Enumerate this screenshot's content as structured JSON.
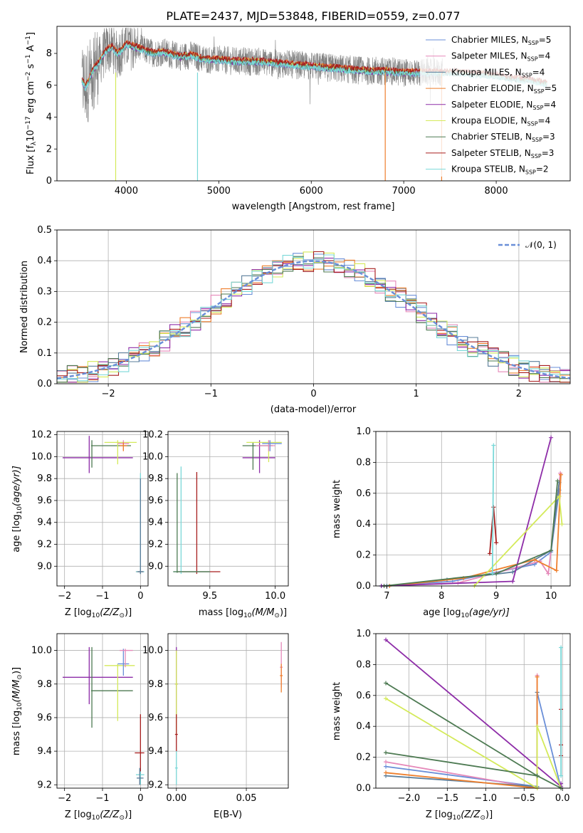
{
  "colors": {
    "Chabrier MILES": "#6a8fd8",
    "Salpeter MILES": "#e588b9",
    "Kroupa MILES": "#5a7d9a",
    "Chabrier ELODIE": "#ee7f2d",
    "Salpeter ELODIE": "#8e2da8",
    "Kroupa ELODIE": "#d4ea5a",
    "Chabrier STELIB": "#4d7a52",
    "Salpeter STELIB": "#a71e1e",
    "Kroupa STELIB": "#7ad8d8",
    "data": "#7f7f7f"
  },
  "chart_data": [
    {
      "id": "spectrum",
      "type": "line",
      "title": "PLATE=2437, MJD=53848, FIBERID=0559, z=0.077",
      "xlabel": "wavelength [Angstrom, rest frame]",
      "ylabel_main": "Flux [f",
      "ylabel_sub": "λ",
      "ylabel_rest": "10",
      "ylabel_exp1": "−17",
      "ylabel_mid": " erg cm",
      "ylabel_exp2": "−2",
      "ylabel_mid2": " s",
      "ylabel_exp3": "−1",
      "ylabel_end": " A",
      "ylabel_exp4": "−1",
      "ylabel_close": "]",
      "xlim": [
        3250,
        8800
      ],
      "ylim": [
        0,
        9.7
      ],
      "xticks": [
        "4000",
        "5000",
        "6000",
        "7000",
        "8000"
      ],
      "xtick_values": [
        4000,
        5000,
        6000,
        7000,
        8000
      ],
      "yticks": [
        "0",
        "2",
        "4",
        "6",
        "8"
      ],
      "ytick_values": [
        0,
        2,
        4,
        6,
        8
      ],
      "legend": [
        {
          "name": "Chabrier MILES",
          "n": "5"
        },
        {
          "name": "Salpeter MILES",
          "n": "4"
        },
        {
          "name": "Kroupa MILES",
          "n": "4"
        },
        {
          "name": "Chabrier ELODIE",
          "n": "5"
        },
        {
          "name": "Salpeter ELODIE",
          "n": "4"
        },
        {
          "name": "Kroupa ELODIE",
          "n": "4"
        },
        {
          "name": "Chabrier STELIB",
          "n": "3"
        },
        {
          "name": "Salpeter STELIB",
          "n": "3"
        },
        {
          "name": "Kroupa STELIB",
          "n": "2"
        }
      ],
      "legend_sub": "SSP",
      "legend_prefix": ", N",
      "legend_eq": "=",
      "legend_placement": "upper right",
      "data_envelope": [
        [
          3520,
          4.8
        ],
        [
          3560,
          8.5
        ],
        [
          3600,
          7.8
        ],
        [
          3650,
          8.2
        ],
        [
          3700,
          8.0
        ],
        [
          3750,
          8.8
        ],
        [
          3800,
          8.3
        ],
        [
          3850,
          8.1
        ],
        [
          3900,
          7.6
        ],
        [
          3950,
          7.3
        ],
        [
          4000,
          8.0
        ],
        [
          4100,
          8.3
        ],
        [
          4200,
          8.1
        ],
        [
          4300,
          7.9
        ],
        [
          4400,
          8.0
        ],
        [
          4500,
          7.8
        ],
        [
          4600,
          7.7
        ],
        [
          4700,
          7.6
        ],
        [
          4800,
          7.5
        ],
        [
          4900,
          7.5
        ],
        [
          5000,
          7.4
        ],
        [
          5100,
          7.3
        ],
        [
          5200,
          7.3
        ],
        [
          5300,
          7.4
        ],
        [
          5400,
          7.3
        ],
        [
          5500,
          7.3
        ],
        [
          5600,
          7.2
        ],
        [
          5700,
          7.3
        ],
        [
          5800,
          7.2
        ],
        [
          5900,
          7.2
        ],
        [
          6000,
          7.1
        ],
        [
          6100,
          7.0
        ],
        [
          6200,
          7.0
        ],
        [
          6300,
          6.9
        ],
        [
          6400,
          6.9
        ],
        [
          6500,
          6.8
        ],
        [
          6600,
          6.8
        ],
        [
          6700,
          6.7
        ],
        [
          6800,
          6.7
        ],
        [
          6900,
          6.6
        ],
        [
          7000,
          6.5
        ],
        [
          7100,
          6.5
        ],
        [
          7200,
          6.4
        ],
        [
          7300,
          6.3
        ],
        [
          7400,
          6.2
        ]
      ],
      "model_x": [
        3520,
        3560,
        3600,
        3650,
        3700,
        3750,
        3800,
        3850,
        3900,
        3950,
        4000,
        4100,
        4200,
        4300,
        4400,
        4500,
        4600,
        4700,
        4800,
        4900,
        5000,
        5200,
        5400,
        5600,
        5800,
        6000,
        6200,
        6400,
        6600,
        6800,
        7000,
        7200,
        7400,
        7600,
        7800,
        8000,
        8200,
        8400,
        8550
      ],
      "model_y": [
        6.3,
        5.9,
        6.4,
        7.1,
        7.4,
        7.9,
        8.3,
        8.4,
        8.0,
        8.2,
        8.6,
        8.4,
        8.2,
        8.0,
        8.1,
        7.9,
        7.8,
        7.9,
        7.7,
        7.6,
        7.6,
        7.5,
        7.5,
        7.4,
        7.3,
        7.2,
        7.1,
        7.0,
        6.9,
        6.9,
        6.8,
        6.8,
        6.8,
        6.8,
        6.7,
        6.6,
        6.4,
        6.3,
        6.1
      ]
    },
    {
      "id": "residuals",
      "type": "bar",
      "xlabel": "(data-model)/error",
      "ylabel": "Normed distribution",
      "xlim": [
        -2.5,
        2.5
      ],
      "ylim": [
        0,
        0.5
      ],
      "xticks": [
        "−2",
        "−1",
        "0",
        "1",
        "2"
      ],
      "xtick_values": [
        -2,
        -1,
        0,
        1,
        2
      ],
      "yticks": [
        "0.0",
        "0.1",
        "0.2",
        "0.3",
        "0.4",
        "0.5"
      ],
      "ytick_values": [
        0,
        0.1,
        0.2,
        0.3,
        0.4,
        0.5
      ],
      "legend_label": "𝒩(0, 1)",
      "legend_placement": "upper right",
      "bin_width": 0.1,
      "bin_start": -2.5
    },
    {
      "id": "age-vs-Z",
      "type": "scatter",
      "xlabel": "Z [log",
      "xlabel_sub": "10",
      "xlabel_rest": "(Z/Z",
      "xlabel_sub2": "⊙",
      "xlabel_end": ")]",
      "ylabel": "age  [log",
      "ylabel_sub": "10",
      "ylabel_rest": "(age/yr)]",
      "xlim": [
        -2.2,
        0.2
      ],
      "ylim": [
        8.82,
        10.23
      ],
      "xticks": [
        "−2",
        "−1",
        "0"
      ],
      "xtick_values": [
        -2,
        -1,
        0
      ],
      "yticks": [
        "9.0",
        "9.2",
        "9.4",
        "9.6",
        "9.8",
        "10.0",
        "10.2"
      ],
      "ytick_values": [
        9.0,
        9.2,
        9.4,
        9.6,
        9.8,
        10.0,
        10.2
      ]
    },
    {
      "id": "age-vs-mass",
      "type": "scatter",
      "xlabel": "mass [log",
      "xlabel_sub": "10",
      "xlabel_rest": "(M/M",
      "xlabel_sub2": "⊙",
      "xlabel_end": ")]",
      "xlim": [
        9.18,
        10.1
      ],
      "ylim": [
        8.82,
        10.23
      ],
      "xticks": [
        "9.5",
        "10.0"
      ],
      "xtick_values": [
        9.5,
        10.0
      ],
      "yticks": [
        "9.0",
        "9.2",
        "9.4",
        "9.6",
        "9.8",
        "10.0",
        "10.2"
      ],
      "ytick_values": [
        9.0,
        9.2,
        9.4,
        9.6,
        9.8,
        10.0,
        10.2
      ]
    },
    {
      "id": "weight-vs-age",
      "type": "line",
      "xlabel": "age  [log",
      "xlabel_sub": "10",
      "xlabel_rest": "(age/yr)]",
      "ylabel": "mass weight",
      "xlim": [
        6.8,
        10.35
      ],
      "ylim": [
        0,
        1.0
      ],
      "xticks": [
        "7",
        "8",
        "9",
        "10"
      ],
      "xtick_values": [
        7,
        8,
        9,
        10
      ],
      "yticks": [
        "0.0",
        "0.2",
        "0.4",
        "0.6",
        "0.8",
        "1.0"
      ],
      "ytick_values": [
        0,
        0.2,
        0.4,
        0.6,
        0.8,
        1.0
      ],
      "series": [
        {
          "key": "Chabrier MILES",
          "x": [
            6.9,
            8.2,
            9.7,
            10.0,
            10.15
          ],
          "y": [
            0.0,
            0.03,
            0.14,
            0.22,
            0.62
          ]
        },
        {
          "key": "Salpeter MILES",
          "x": [
            6.95,
            8.3,
            9.8,
            9.95,
            10.17
          ],
          "y": [
            0.0,
            0.02,
            0.16,
            0.08,
            0.73
          ]
        },
        {
          "key": "Kroupa MILES",
          "x": [
            7.0,
            8.1,
            9.3,
            10.0,
            10.15
          ],
          "y": [
            0.0,
            0.04,
            0.09,
            0.23,
            0.67
          ]
        },
        {
          "key": "Chabrier ELODIE",
          "x": [
            7.05,
            8.4,
            9.7,
            10.1,
            10.18
          ],
          "y": [
            0.0,
            0.05,
            0.17,
            0.1,
            0.72
          ]
        },
        {
          "key": "Salpeter ELODIE",
          "x": [
            6.9,
            9.3,
            10.0
          ],
          "y": [
            0.0,
            0.03,
            0.96
          ]
        },
        {
          "key": "Kroupa ELODIE",
          "x": [
            8.6,
            10.15,
            10.2
          ],
          "y": [
            0.0,
            0.58,
            0.4
          ]
        },
        {
          "key": "Chabrier STELIB",
          "x": [
            6.95,
            9.0,
            10.0,
            10.12
          ],
          "y": [
            0.0,
            0.08,
            0.23,
            0.68
          ]
        },
        {
          "key": "Salpeter STELIB",
          "x": [
            8.88,
            8.95,
            9.0
          ],
          "y": [
            0.21,
            0.51,
            0.28
          ]
        },
        {
          "key": "Kroupa STELIB",
          "x": [
            8.93,
            8.95
          ],
          "y": [
            0.08,
            0.91
          ]
        }
      ]
    },
    {
      "id": "mass-vs-Z",
      "type": "scatter",
      "xlabel": "Z [log",
      "xlabel_sub": "10",
      "xlabel_rest": "(Z/Z",
      "xlabel_sub2": "⊙",
      "xlabel_end": ")]",
      "ylabel": "mass [log",
      "ylabel_sub": "10",
      "ylabel_rest": "(M/M",
      "ylabel_sub2": "⊙",
      "ylabel_end": ")]",
      "xlim": [
        -2.2,
        0.2
      ],
      "ylim": [
        9.18,
        10.1
      ],
      "xticks": [
        "−2",
        "−1",
        "0"
      ],
      "xtick_values": [
        -2,
        -1,
        0
      ],
      "yticks": [
        "9.2",
        "9.4",
        "9.6",
        "9.8",
        "10.0"
      ],
      "ytick_values": [
        9.2,
        9.4,
        9.6,
        9.8,
        10.0
      ]
    },
    {
      "id": "mass-vs-EBV",
      "type": "scatter",
      "xlabel": "E(B-V)",
      "xlim": [
        -0.006,
        0.08
      ],
      "ylim": [
        9.18,
        10.1
      ],
      "xticks": [
        "0.00",
        "0.05"
      ],
      "xtick_values": [
        0.0,
        0.05
      ],
      "yticks": [
        "9.2",
        "9.4",
        "9.6",
        "9.8",
        "10.0"
      ],
      "ytick_values": [
        9.2,
        9.4,
        9.6,
        9.8,
        10.0
      ]
    },
    {
      "id": "weight-vs-Z",
      "type": "line",
      "xlabel": "Z [log",
      "xlabel_sub": "10",
      "xlabel_rest": "(Z/Z",
      "xlabel_sub2": "⊙",
      "xlabel_end": ")]",
      "ylabel": "mass weight",
      "xlim": [
        -2.43,
        0.1
      ],
      "ylim": [
        0,
        1.0
      ],
      "xticks": [
        "−2.0",
        "−1.5",
        "−1.0",
        "−0.5",
        "0.0"
      ],
      "xtick_values": [
        -2.0,
        -1.5,
        -1.0,
        -0.5,
        0.0
      ],
      "yticks": [
        "0.0",
        "0.2",
        "0.4",
        "0.6",
        "0.8",
        "1.0"
      ],
      "ytick_values": [
        0,
        0.2,
        0.4,
        0.6,
        0.8,
        1.0
      ],
      "series": [
        {
          "key": "Chabrier MILES",
          "x": [
            -2.3,
            -0.33,
            -0.33,
            -0.02
          ],
          "y": [
            0.14,
            0.01,
            0.62,
            0.0
          ]
        },
        {
          "key": "Salpeter MILES",
          "x": [
            -2.3,
            -0.33,
            -0.33
          ],
          "y": [
            0.17,
            0.0,
            0.73
          ]
        },
        {
          "key": "Kroupa MILES",
          "x": [
            -2.3,
            -0.33,
            -0.33
          ],
          "y": [
            0.08,
            0.01,
            0.62
          ]
        },
        {
          "key": "Chabrier ELODIE",
          "x": [
            -2.3,
            -0.33,
            -0.33
          ],
          "y": [
            0.1,
            0.0,
            0.72
          ]
        },
        {
          "key": "Salpeter ELODIE",
          "x": [
            -2.3,
            -0.02,
            -0.02
          ],
          "y": [
            0.96,
            0.01,
            0.03
          ]
        },
        {
          "key": "Kroupa ELODIE",
          "x": [
            -2.3,
            -0.33,
            -0.33,
            -0.02
          ],
          "y": [
            0.58,
            0.0,
            0.4,
            0.0
          ]
        },
        {
          "key": "Chabrier STELIB",
          "x": [
            -2.3,
            -0.33,
            -0.02
          ],
          "y": [
            0.68,
            0.08,
            0.0
          ]
        },
        {
          "key": "Chabrier STELIB",
          "x": [
            -2.3,
            -0.33
          ],
          "y": [
            0.23,
            0.08
          ]
        },
        {
          "key": "Salpeter STELIB",
          "x": [
            -0.02,
            -0.02,
            -0.02
          ],
          "y": [
            0.21,
            0.51,
            0.28
          ]
        },
        {
          "key": "Kroupa STELIB",
          "x": [
            -0.02,
            -0.02
          ],
          "y": [
            0.08,
            0.91
          ]
        }
      ]
    }
  ]
}
